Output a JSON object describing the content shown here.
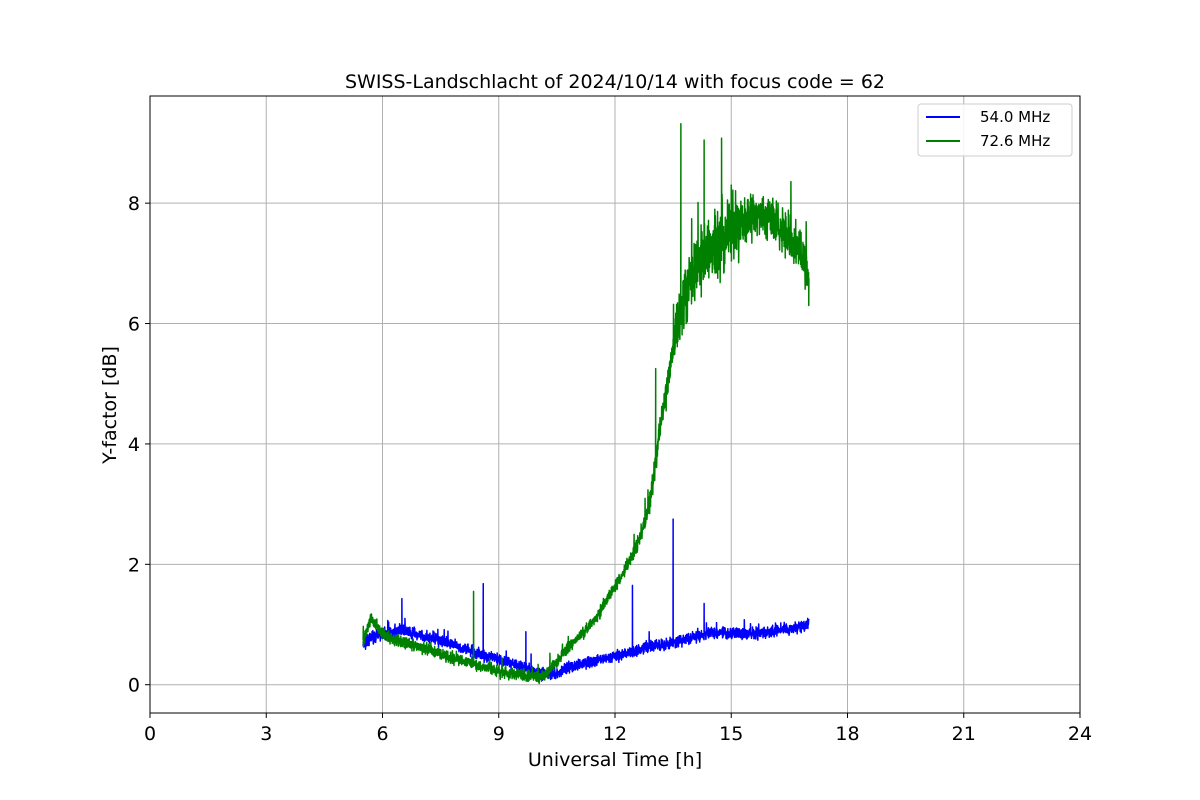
{
  "chart_data": {
    "type": "line",
    "title": "SWISS-Landschlacht of 2024/10/14 with focus code = 62",
    "xlabel": "Universal Time [h]",
    "ylabel": "Y-factor [dB]",
    "xlim": [
      0,
      24
    ],
    "ylim": [
      -0.47,
      9.78
    ],
    "xticks": [
      0,
      3,
      6,
      9,
      12,
      15,
      18,
      21,
      24
    ],
    "yticks": [
      0,
      2,
      4,
      6,
      8
    ],
    "grid": true,
    "legend_position": "top-right",
    "series": [
      {
        "name": "54.0 MHz",
        "color": "#0000ff",
        "x": [
          5.5,
          5.7,
          6.0,
          6.3,
          6.5,
          6.8,
          7.0,
          7.3,
          7.6,
          8.0,
          8.3,
          8.6,
          9.0,
          9.3,
          9.6,
          9.9,
          10.2,
          10.5,
          10.8,
          11.1,
          11.4,
          11.7,
          12.0,
          12.3,
          12.6,
          12.9,
          13.2,
          13.5,
          13.8,
          14.1,
          14.4,
          14.7,
          15.0,
          15.3,
          15.6,
          15.9,
          16.2,
          16.5,
          16.8,
          17.0
        ],
        "y": [
          0.65,
          0.78,
          0.85,
          0.88,
          0.9,
          0.85,
          0.82,
          0.78,
          0.72,
          0.62,
          0.55,
          0.5,
          0.42,
          0.36,
          0.3,
          0.22,
          0.18,
          0.2,
          0.28,
          0.34,
          0.38,
          0.43,
          0.48,
          0.52,
          0.58,
          0.63,
          0.66,
          0.7,
          0.74,
          0.8,
          0.85,
          0.86,
          0.84,
          0.83,
          0.85,
          0.87,
          0.9,
          0.93,
          0.97,
          1.0
        ],
        "spikes": [
          [
            6.5,
            1.43
          ],
          [
            8.6,
            1.68
          ],
          [
            9.7,
            0.88
          ],
          [
            12.45,
            1.65
          ],
          [
            13.5,
            2.75
          ],
          [
            14.3,
            1.35
          ]
        ]
      },
      {
        "name": "72.6 MHz",
        "color": "#008000",
        "x": [
          5.5,
          5.7,
          6.0,
          6.3,
          6.6,
          7.0,
          7.4,
          7.8,
          8.2,
          8.6,
          9.0,
          9.4,
          9.8,
          10.1,
          10.4,
          10.7,
          11.0,
          11.3,
          11.6,
          11.9,
          12.2,
          12.5,
          12.7,
          12.9,
          13.0,
          13.2,
          13.4,
          13.6,
          13.8,
          14.0,
          14.3,
          14.6,
          14.9,
          15.2,
          15.5,
          15.8,
          16.1,
          16.4,
          16.7,
          16.9,
          17.0
        ],
        "y": [
          0.7,
          1.1,
          0.85,
          0.75,
          0.7,
          0.62,
          0.55,
          0.45,
          0.38,
          0.3,
          0.22,
          0.18,
          0.15,
          0.12,
          0.3,
          0.55,
          0.75,
          0.95,
          1.2,
          1.55,
          1.85,
          2.2,
          2.55,
          3.0,
          3.5,
          4.4,
          5.2,
          6.0,
          6.4,
          6.8,
          7.15,
          7.35,
          7.5,
          7.65,
          7.75,
          7.8,
          7.7,
          7.5,
          7.3,
          7.0,
          6.75
        ],
        "spikes": [
          [
            8.35,
            1.55
          ],
          [
            12.9,
            3.2
          ],
          [
            13.05,
            5.25
          ],
          [
            13.7,
            9.32
          ],
          [
            14.3,
            9.05
          ],
          [
            14.75,
            9.08
          ],
          [
            15.0,
            8.3
          ],
          [
            15.5,
            8.15
          ],
          [
            17.0,
            6.3
          ]
        ]
      }
    ]
  }
}
